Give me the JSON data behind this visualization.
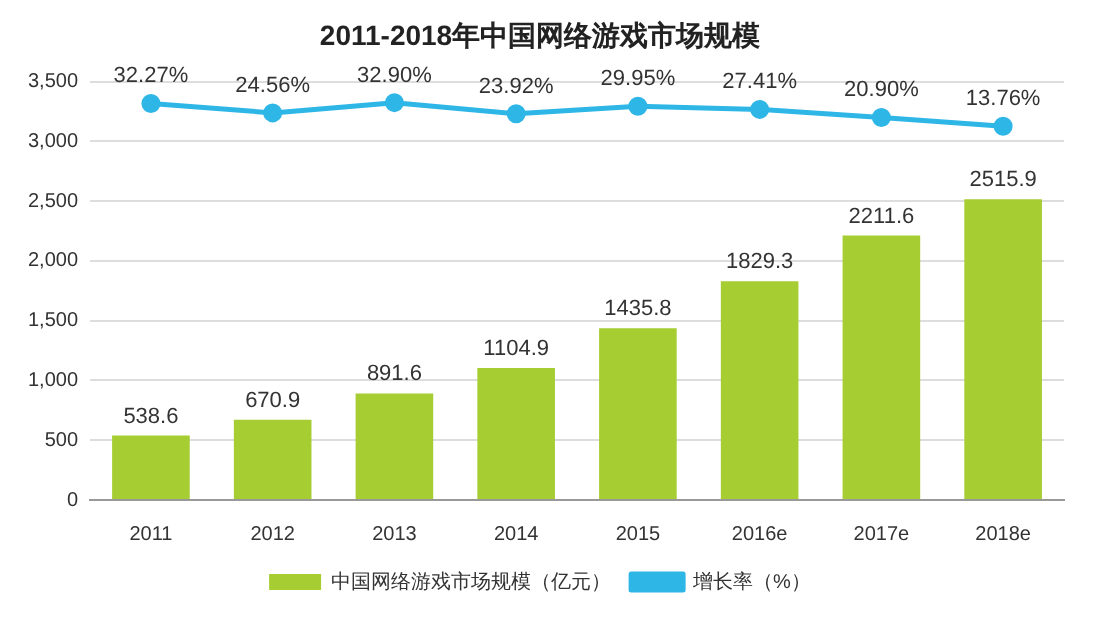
{
  "chart_data": {
    "type": "bar",
    "title": "2011-2018年中国网络游戏市场规模",
    "categories": [
      "2011",
      "2012",
      "2013",
      "2014",
      "2015",
      "2016e",
      "2017e",
      "2018e"
    ],
    "series": [
      {
        "name": "中国网络游戏市场规模（亿元）",
        "color": "#a6cd32",
        "values": [
          538.6,
          670.9,
          891.6,
          1104.9,
          1435.8,
          1829.3,
          2211.6,
          2515.9
        ],
        "value_labels": [
          "538.6",
          "670.9",
          "891.6",
          "1104.9",
          "1435.8",
          "1829.3",
          "2211.6",
          "2515.9"
        ]
      },
      {
        "name": "增长率（%）",
        "type": "line",
        "axis": "y2",
        "color": "#2db6e6",
        "values": [
          32.27,
          24.56,
          32.9,
          23.92,
          29.95,
          27.41,
          20.9,
          13.76
        ],
        "value_labels": [
          "32.27%",
          "24.56%",
          "32.90%",
          "23.92%",
          "29.95%",
          "27.41%",
          "20.90%",
          "13.76%"
        ]
      }
    ],
    "ylim": [
      0,
      3500
    ],
    "yticks": [
      0,
      500,
      {
        "value": 1000,
        "label": "1,000"
      },
      {
        "value": 1500,
        "label": "1,500"
      },
      {
        "value": 2000,
        "label": "2,000"
      },
      {
        "value": 2500,
        "label": "2,500"
      },
      {
        "value": 3000,
        "label": "3,000"
      },
      {
        "value": 3500,
        "label": "3,500"
      }
    ],
    "y2lim": [
      -290,
      50
    ],
    "grid": "y",
    "legend": "bottom",
    "marker": "circle",
    "line_style": "solid"
  }
}
